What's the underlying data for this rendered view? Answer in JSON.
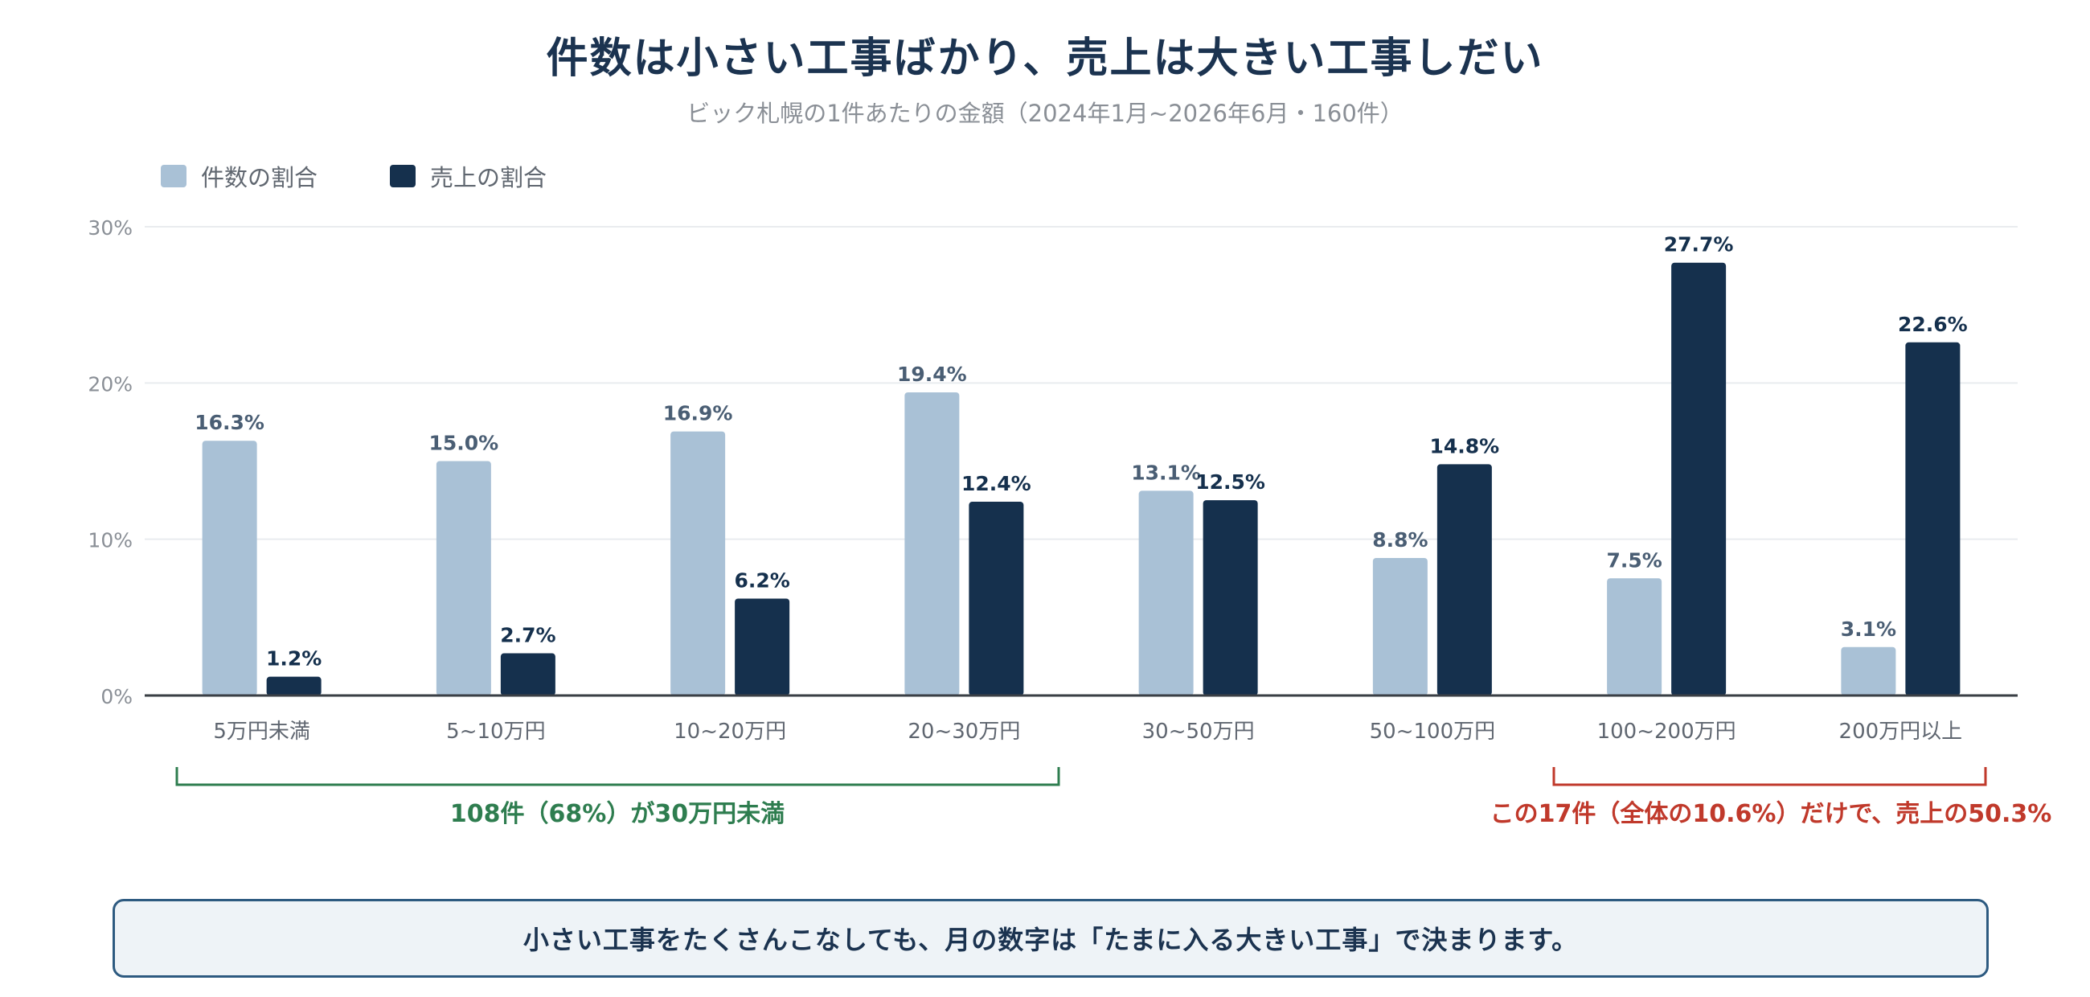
{
  "title": "件数は小さい工事ばかり、売上は大きい工事しだい",
  "subtitle": "ビック札幌の1件あたりの金額（2024年1月~2026年6月・160件）",
  "legend": [
    {
      "label": "件数の割合",
      "color": "#a9c1d6"
    },
    {
      "label": "売上の割合",
      "color": "#15304d"
    }
  ],
  "chart_data": {
    "type": "bar",
    "categories": [
      "5万円未満",
      "5~10万円",
      "10~20万円",
      "20~30万円",
      "30~50万円",
      "50~100万円",
      "100~200万円",
      "200万円以上"
    ],
    "series": [
      {
        "name": "件数の割合",
        "values": [
          16.3,
          15.0,
          16.9,
          19.4,
          13.1,
          8.8,
          7.5,
          3.1
        ],
        "color": "#a9c1d6",
        "label_color": "#4a5e74"
      },
      {
        "name": "売上の割合",
        "values": [
          1.2,
          2.7,
          6.2,
          12.4,
          12.5,
          14.8,
          27.7,
          22.6
        ],
        "color": "#15304d",
        "label_color": "#15304d"
      }
    ],
    "yticks": [
      "0%",
      "10%",
      "20%",
      "30%"
    ],
    "ylim": [
      0,
      30
    ],
    "unit": "%",
    "grid": true,
    "legend_position": "top-left"
  },
  "annotations": [
    {
      "text": "108件（68%）が30万円未満",
      "color": "#2e7d4f",
      "from_category": 0,
      "to_category": 3
    },
    {
      "text": "この17件（全体の10.6%）だけで、売上の50.3%",
      "color": "#c0392b",
      "from_category": 6,
      "to_category": 7
    }
  ],
  "note": "小さい工事をたくさんこなしても、月の数字は「たまに入る大きい工事」で決まります。"
}
